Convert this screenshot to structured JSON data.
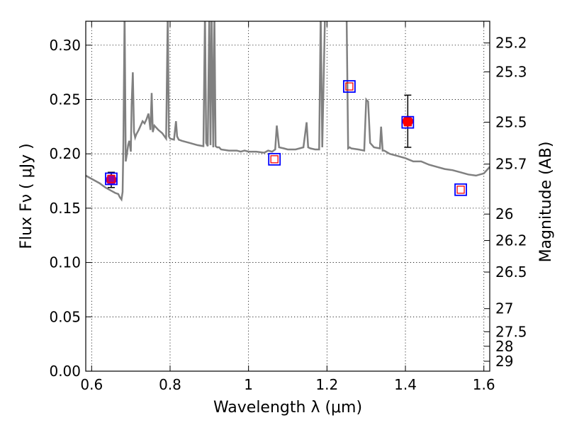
{
  "chart_data": {
    "type": "line",
    "xlabel": "Wavelength  λ (μm)",
    "ylabel": "Flux  Fν  ( μJy )",
    "ylabel_right": "Magnitude (AB)",
    "xlim": [
      0.585,
      1.615
    ],
    "ylim": [
      0.0,
      0.322
    ],
    "grid": true,
    "x_ticks": [
      {
        "value": 0.6,
        "label": "0.6"
      },
      {
        "value": 0.8,
        "label": "0.8"
      },
      {
        "value": 1.0,
        "label": "1"
      },
      {
        "value": 1.2,
        "label": "1.2"
      },
      {
        "value": 1.4,
        "label": "1.4"
      },
      {
        "value": 1.6,
        "label": "1.6"
      }
    ],
    "y_ticks": [
      {
        "value": 0.0,
        "label": "0.00"
      },
      {
        "value": 0.05,
        "label": "0.05"
      },
      {
        "value": 0.1,
        "label": "0.10"
      },
      {
        "value": 0.15,
        "label": "0.15"
      },
      {
        "value": 0.2,
        "label": "0.20"
      },
      {
        "value": 0.25,
        "label": "0.25"
      },
      {
        "value": 0.3,
        "label": "0.30"
      }
    ],
    "right_ticks": [
      {
        "value": 25.2,
        "label": "25.2"
      },
      {
        "value": 25.3,
        "label": "25.3"
      },
      {
        "value": 25.5,
        "label": "25.5"
      },
      {
        "value": 25.7,
        "label": "25.7"
      },
      {
        "value": 26.0,
        "label": "26"
      },
      {
        "value": 26.2,
        "label": "26.2"
      },
      {
        "value": 26.5,
        "label": "26.5"
      },
      {
        "value": 27.0,
        "label": "27"
      },
      {
        "value": 27.5,
        "label": "27.5"
      },
      {
        "value": 28.0,
        "label": "28"
      },
      {
        "value": 29.0,
        "label": "29"
      }
    ],
    "template_spectrum": {
      "color": "#808080",
      "x": [
        0.585,
        0.6,
        0.62,
        0.635,
        0.65,
        0.66,
        0.668,
        0.672,
        0.676,
        0.679,
        0.681,
        0.684,
        0.687,
        0.69,
        0.693,
        0.696,
        0.7,
        0.702,
        0.705,
        0.708,
        0.711,
        0.714,
        0.72,
        0.73,
        0.735,
        0.74,
        0.745,
        0.75,
        0.753,
        0.756,
        0.76,
        0.77,
        0.78,
        0.79,
        0.794,
        0.797,
        0.8,
        0.81,
        0.815,
        0.818,
        0.822,
        0.83,
        0.85,
        0.87,
        0.885,
        0.889,
        0.892,
        0.896,
        0.9,
        0.903,
        0.906,
        0.91,
        0.913,
        0.916,
        0.92,
        0.925,
        0.93,
        0.95,
        0.97,
        0.98,
        0.99,
        1.0,
        1.02,
        1.04,
        1.05,
        1.06,
        1.068,
        1.072,
        1.078,
        1.09,
        1.1,
        1.12,
        1.14,
        1.148,
        1.152,
        1.158,
        1.17,
        1.18,
        1.184,
        1.188,
        1.195,
        1.25,
        1.254,
        1.258,
        1.262,
        1.28,
        1.295,
        1.3,
        1.305,
        1.31,
        1.32,
        1.335,
        1.338,
        1.342,
        1.346,
        1.36,
        1.38,
        1.4,
        1.42,
        1.44,
        1.46,
        1.48,
        1.5,
        1.52,
        1.54,
        1.56,
        1.58,
        1.6,
        1.615
      ],
      "y": [
        0.18,
        0.177,
        0.173,
        0.169,
        0.166,
        0.164,
        0.163,
        0.16,
        0.158,
        0.165,
        0.21,
        0.33,
        0.193,
        0.2,
        0.208,
        0.212,
        0.202,
        0.245,
        0.275,
        0.22,
        0.215,
        0.218,
        0.222,
        0.23,
        0.228,
        0.232,
        0.237,
        0.222,
        0.256,
        0.22,
        0.226,
        0.222,
        0.219,
        0.214,
        0.33,
        0.216,
        0.214,
        0.213,
        0.23,
        0.216,
        0.213,
        0.212,
        0.21,
        0.208,
        0.207,
        0.33,
        0.21,
        0.207,
        0.33,
        0.208,
        0.33,
        0.206,
        0.33,
        0.207,
        0.206,
        0.206,
        0.204,
        0.203,
        0.203,
        0.202,
        0.203,
        0.202,
        0.202,
        0.201,
        0.203,
        0.202,
        0.204,
        0.226,
        0.206,
        0.205,
        0.204,
        0.204,
        0.206,
        0.229,
        0.206,
        0.205,
        0.204,
        0.204,
        0.33,
        0.206,
        0.33,
        0.33,
        0.205,
        0.206,
        0.205,
        0.204,
        0.203,
        0.25,
        0.248,
        0.21,
        0.206,
        0.205,
        0.225,
        0.203,
        0.203,
        0.2,
        0.198,
        0.196,
        0.193,
        0.193,
        0.19,
        0.188,
        0.186,
        0.185,
        0.183,
        0.181,
        0.18,
        0.182,
        0.188
      ]
    },
    "model_points": {
      "marker": "square",
      "colors": {
        "outer": "#0000ff",
        "inner": "#ff0000"
      },
      "x": [
        0.65,
        1.066,
        1.257,
        1.406,
        1.541
      ],
      "y": [
        0.177,
        0.195,
        0.262,
        0.229,
        0.167
      ]
    },
    "observations": [
      {
        "x": 0.65,
        "y": 0.176,
        "yerr": 0.007,
        "color": "#990099"
      },
      {
        "x": 1.406,
        "y": 0.23,
        "yerr": 0.024,
        "color": "#ff0000"
      }
    ]
  }
}
